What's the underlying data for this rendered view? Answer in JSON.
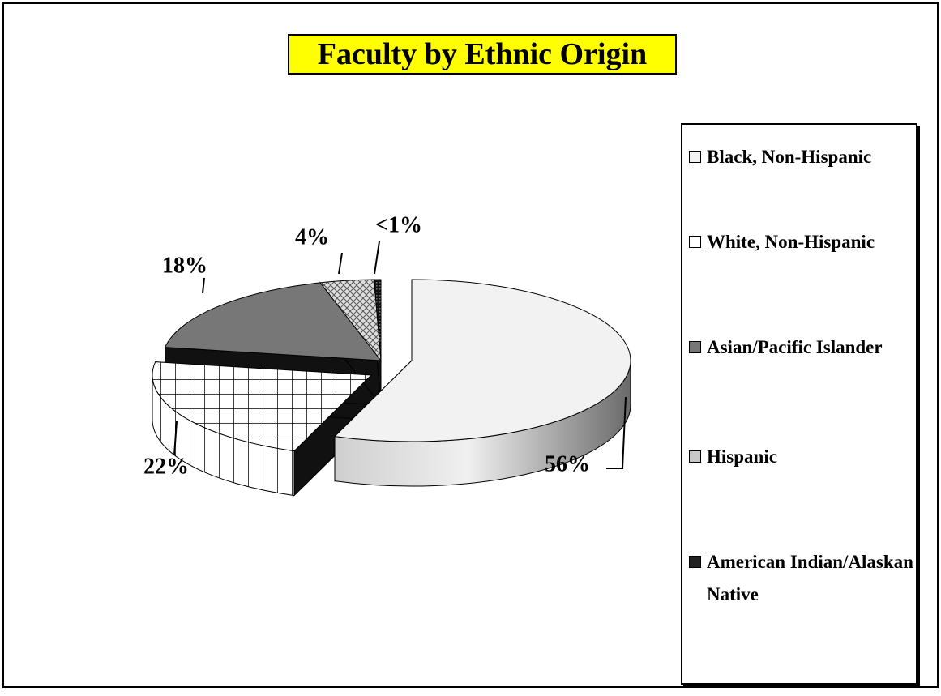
{
  "chart_data": {
    "type": "pie",
    "title": "Faculty by Ethnic Origin",
    "categories": [
      "Black, Non-Hispanic",
      "White, Non-Hispanic",
      "Asian/Pacific Islander",
      "Hispanic",
      "American Indian/Alaskan Native"
    ],
    "values": [
      56,
      22,
      18,
      4,
      0.5
    ],
    "value_labels": [
      "56%",
      "22%",
      "18%",
      "4%",
      "<1%"
    ],
    "colors": [
      "#e6e6e6",
      "#ffffff",
      "#7a7a7a",
      "#c8c8c8",
      "#222222"
    ],
    "legend": "right"
  }
}
